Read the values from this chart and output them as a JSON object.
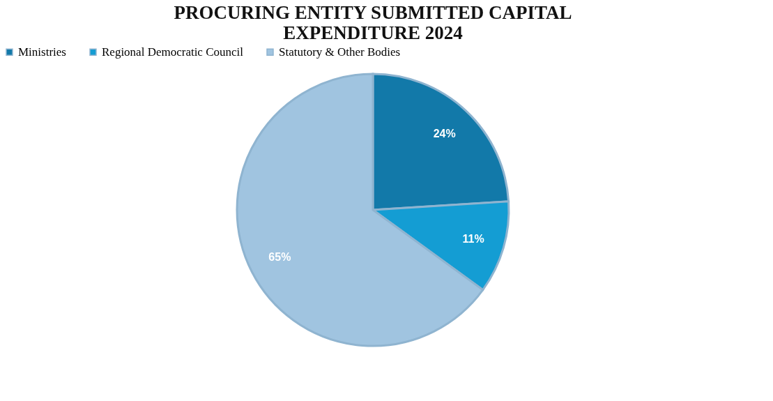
{
  "chart_data": {
    "type": "pie",
    "title": [
      "PROCURING ENTITY SUBMITTED CAPITAL",
      "EXPENDITURE 2024"
    ],
    "categories": [
      "Ministries",
      "Regional Democratic Council",
      "Statutory & Other Bodies"
    ],
    "values": [
      24,
      11,
      65
    ],
    "colors": [
      "#1279a9",
      "#149dd3",
      "#a0c4e0"
    ],
    "value_labels": [
      "24%",
      "11%",
      "65%"
    ],
    "legend": "top"
  }
}
